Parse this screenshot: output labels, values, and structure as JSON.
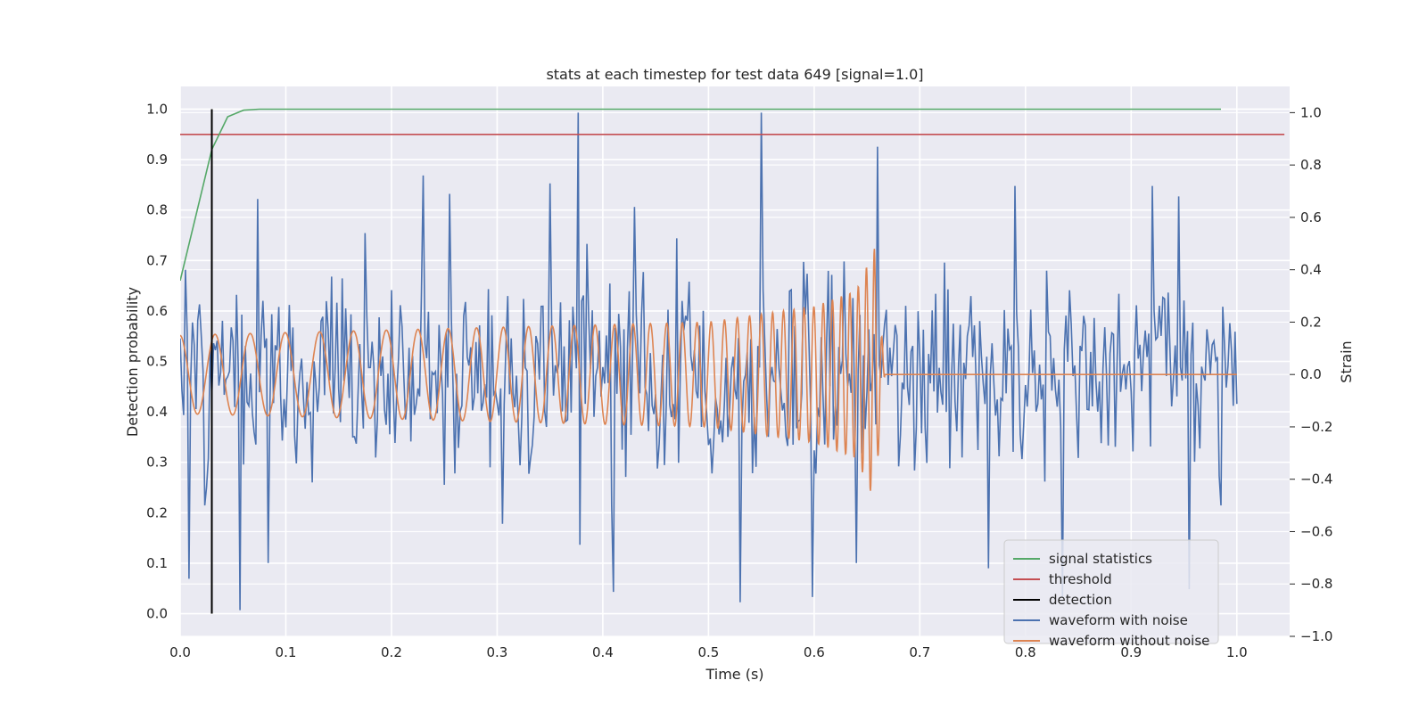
{
  "chart_data": {
    "type": "line",
    "title": "stats at each timestep for test data 649 [signal=1.0]",
    "xlabel": "Time (s)",
    "ylabel": "Detection probability",
    "ylabel_right": "Strain",
    "xlim": [
      0.0,
      1.05
    ],
    "ylim": [
      -0.045,
      1.045
    ],
    "ylim_right": [
      -1.0,
      1.1
    ],
    "x_ticks": [
      "0.0",
      "0.1",
      "0.2",
      "0.3",
      "0.4",
      "0.5",
      "0.6",
      "0.7",
      "0.8",
      "0.9",
      "1.0"
    ],
    "y_ticks": [
      "0.0",
      "0.1",
      "0.2",
      "0.3",
      "0.4",
      "0.5",
      "0.6",
      "0.7",
      "0.8",
      "0.9",
      "1.0"
    ],
    "y_ticks_right": [
      "−1.0",
      "−0.8",
      "−0.6",
      "−0.4",
      "−0.2",
      "0.0",
      "0.2",
      "0.4",
      "0.6",
      "0.8",
      "1.0"
    ],
    "grid": true,
    "legend_position": "lower-right",
    "background": "#EAEAF2",
    "series": [
      {
        "name": "signal statistics",
        "axis": "left",
        "color": "#55A868",
        "x": [
          0.0,
          0.015,
          0.03,
          0.045,
          0.06,
          0.075,
          0.1,
          0.3,
          0.5,
          0.7,
          0.9,
          0.985
        ],
        "y": [
          0.66,
          0.79,
          0.92,
          0.985,
          0.998,
          1.0,
          1.0,
          1.0,
          1.0,
          1.0,
          1.0,
          1.0
        ]
      },
      {
        "name": "threshold",
        "axis": "left",
        "color": "#C44E52",
        "x": [
          0.0,
          1.045
        ],
        "y": [
          0.95,
          0.95
        ]
      },
      {
        "name": "detection",
        "axis": "left",
        "color": "#000000",
        "x": [
          0.03,
          0.03
        ],
        "y": [
          0.0,
          1.0
        ]
      },
      {
        "name": "waveform with noise",
        "axis": "right",
        "color": "#4C72B0",
        "x_range": [
          0.0,
          1.0
        ],
        "samples": 600,
        "highlights": [
          {
            "x": 0.005,
            "y": 0.4
          },
          {
            "x": 0.008,
            "y": -0.78
          },
          {
            "x": 0.023,
            "y": -0.5
          },
          {
            "x": 0.057,
            "y": -0.9
          },
          {
            "x": 0.073,
            "y": 0.67
          },
          {
            "x": 0.083,
            "y": -0.72
          },
          {
            "x": 0.175,
            "y": 0.54
          },
          {
            "x": 0.23,
            "y": 0.76
          },
          {
            "x": 0.255,
            "y": 0.69
          },
          {
            "x": 0.305,
            "y": -0.57
          },
          {
            "x": 0.35,
            "y": 0.73
          },
          {
            "x": 0.377,
            "y": 1.0
          },
          {
            "x": 0.379,
            "y": -0.65
          },
          {
            "x": 0.41,
            "y": -0.83
          },
          {
            "x": 0.43,
            "y": 0.64
          },
          {
            "x": 0.47,
            "y": 0.52
          },
          {
            "x": 0.53,
            "y": -0.87
          },
          {
            "x": 0.55,
            "y": 1.0
          },
          {
            "x": 0.598,
            "y": -0.85
          },
          {
            "x": 0.64,
            "y": -0.72
          },
          {
            "x": 0.66,
            "y": 0.87
          },
          {
            "x": 0.765,
            "y": -0.74
          },
          {
            "x": 0.79,
            "y": 0.72
          },
          {
            "x": 0.835,
            "y": -0.85
          },
          {
            "x": 0.92,
            "y": 0.72
          },
          {
            "x": 0.945,
            "y": 0.68
          },
          {
            "x": 0.955,
            "y": -0.82
          },
          {
            "x": 0.985,
            "y": -0.5
          }
        ]
      },
      {
        "name": "waveform without noise",
        "axis": "right",
        "color": "#DD8452",
        "envelope": [
          {
            "x": 0.0,
            "amp": 0.15
          },
          {
            "x": 0.5,
            "amp": 0.2
          },
          {
            "x": 0.6,
            "amp": 0.26
          },
          {
            "x": 0.64,
            "amp": 0.32
          },
          {
            "x": 0.657,
            "amp": 0.48
          },
          {
            "x": 0.665,
            "amp": 0.1
          },
          {
            "x": 0.667,
            "amp": 0.0
          },
          {
            "x": 1.0,
            "amp": 0.0
          }
        ],
        "freq_hz": [
          30,
          140
        ],
        "end_x": 1.0
      }
    ]
  }
}
